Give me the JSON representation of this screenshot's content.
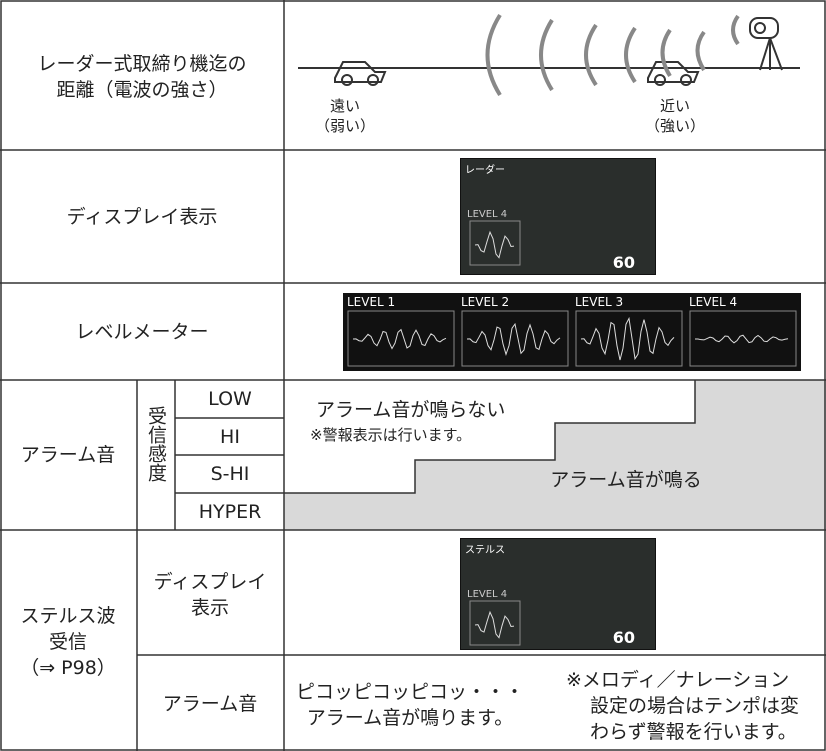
{
  "distance": {
    "label": [
      "レーダー式取締り機迄の",
      "距離（電波の強さ）"
    ],
    "far": [
      "遠い",
      "（弱い）"
    ],
    "near": [
      "近い",
      "（強い）"
    ]
  },
  "display": {
    "label": "ディスプレイ表示",
    "screen": {
      "title": "レーダー",
      "level": "LEVEL 4",
      "speed": "60"
    }
  },
  "meter": {
    "label": "レベルメーター",
    "levels": [
      "LEVEL 1",
      "LEVEL 2",
      "LEVEL 3",
      "LEVEL 4"
    ]
  },
  "alarm": {
    "label": "アラーム音",
    "sensitivity": "受信感度",
    "modes": [
      "LOW",
      "HI",
      "S-HI",
      "HYPER"
    ],
    "silent": "アラーム音が鳴らない",
    "note": "※警報表示は行います。",
    "sounding": "アラーム音が鳴る"
  },
  "stealth": {
    "label": [
      "ステルス波",
      "受信",
      "（⇒ P98）"
    ],
    "display": {
      "label": [
        "ディスプレイ",
        "表示"
      ],
      "screen": {
        "title": "ステルス",
        "level": "LEVEL 4",
        "speed": "60"
      }
    },
    "alarm": {
      "label": "アラーム音",
      "sound": [
        "ピコッピコッピコッ・・・",
        "アラーム音が鳴ります。"
      ],
      "note": [
        "※メロディ／ナレーション",
        "設定の場合はテンポは変",
        "わらず警報を行います。"
      ]
    }
  }
}
